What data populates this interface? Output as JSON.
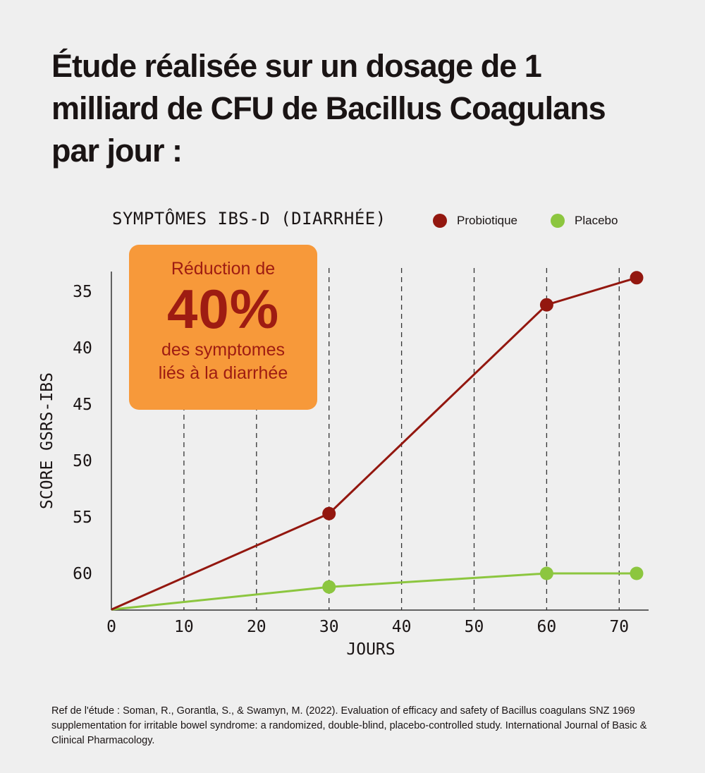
{
  "title": "Étude réalisée sur un dosage de 1 milliard de CFU de Bacillus Coagulans par jour :",
  "callout": {
    "line1": "Réduction de",
    "value": "40%",
    "line3": "des symptomes",
    "line4": "liés à la diarrhée",
    "bg_color": "#f7993a",
    "text_color": "#9e1c12"
  },
  "reference": "Ref de l'étude : Soman, R., Gorantla, S., & Swamyn, M. (2022). Evaluation of efficacy and safety of Bacillus coagulans SNZ 1969 supplementation for irritable bowel syndrome: a randomized, double-blind, placebo-controlled study. International Journal of Basic & Clinical Pharmacology.",
  "chart_data": {
    "type": "line",
    "title": "SYMPTÔMES IBS-D (DIARRHÉE)",
    "xlabel": "JOURS",
    "ylabel": "SCORE GSRS-IBS",
    "xlim": [
      0,
      74
    ],
    "ylim": [
      63.2,
      33
    ],
    "y_inverted": true,
    "x_ticks": [
      0,
      10,
      20,
      30,
      40,
      50,
      60,
      70
    ],
    "y_ticks": [
      35,
      40,
      45,
      50,
      55,
      60
    ],
    "grid": "vertical dashed",
    "legend_position": "top-right",
    "series": [
      {
        "name": "Probiotique",
        "color": "#93170f",
        "x": [
          0,
          30,
          60,
          72.4
        ],
        "y": [
          63.2,
          54.7,
          36.2,
          33.8
        ]
      },
      {
        "name": "Placebo",
        "color": "#8cc63f",
        "x": [
          0,
          30,
          60,
          72.4
        ],
        "y": [
          63.2,
          61.2,
          60,
          60
        ]
      }
    ]
  }
}
